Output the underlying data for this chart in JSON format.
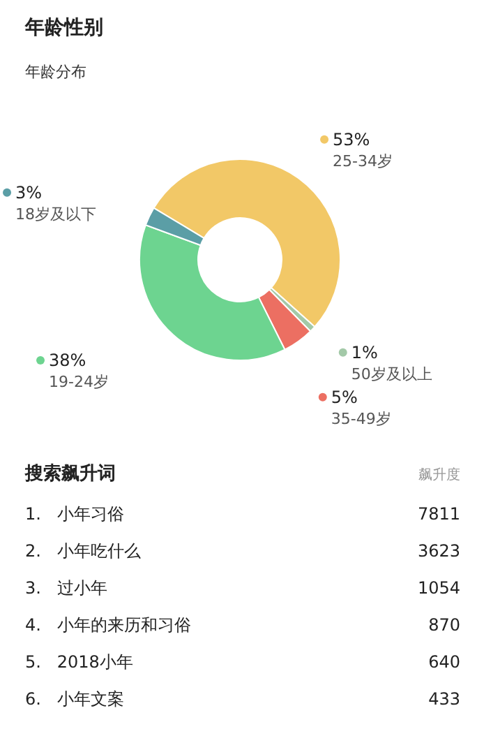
{
  "chart_data": [
    {
      "type": "donut",
      "title": "年龄性别",
      "subtitle": "年龄分布",
      "legend": "bottom left",
      "categories": [
        "25-34岁",
        "50岁及以上",
        "35-49岁",
        "19-24岁",
        "18岁及以下"
      ],
      "values": [
        53,
        1,
        5,
        38,
        3
      ],
      "colors": [
        "#f2c867",
        "#a3c9a8",
        "#ec6f62",
        "#6dd490",
        "#5b9ea6"
      ],
      "value_labels": [
        "53%",
        "1%",
        "5%",
        "38%",
        "3%"
      ]
    },
    {
      "type": "other",
      "title": "搜索飙升词",
      "subtitle": "飙升度",
      "categories": [
        "1.   小年习俗",
        "2.   小年吃什么",
        "3.   过小年",
        "4.   小年的来历和习俗",
        "5.   2018小年",
        "6.   小年文案"
      ],
      "values": [
        7811,
        3623,
        1054,
        870,
        640,
        433
      ],
      "data_labels": true
    }
  ]
}
